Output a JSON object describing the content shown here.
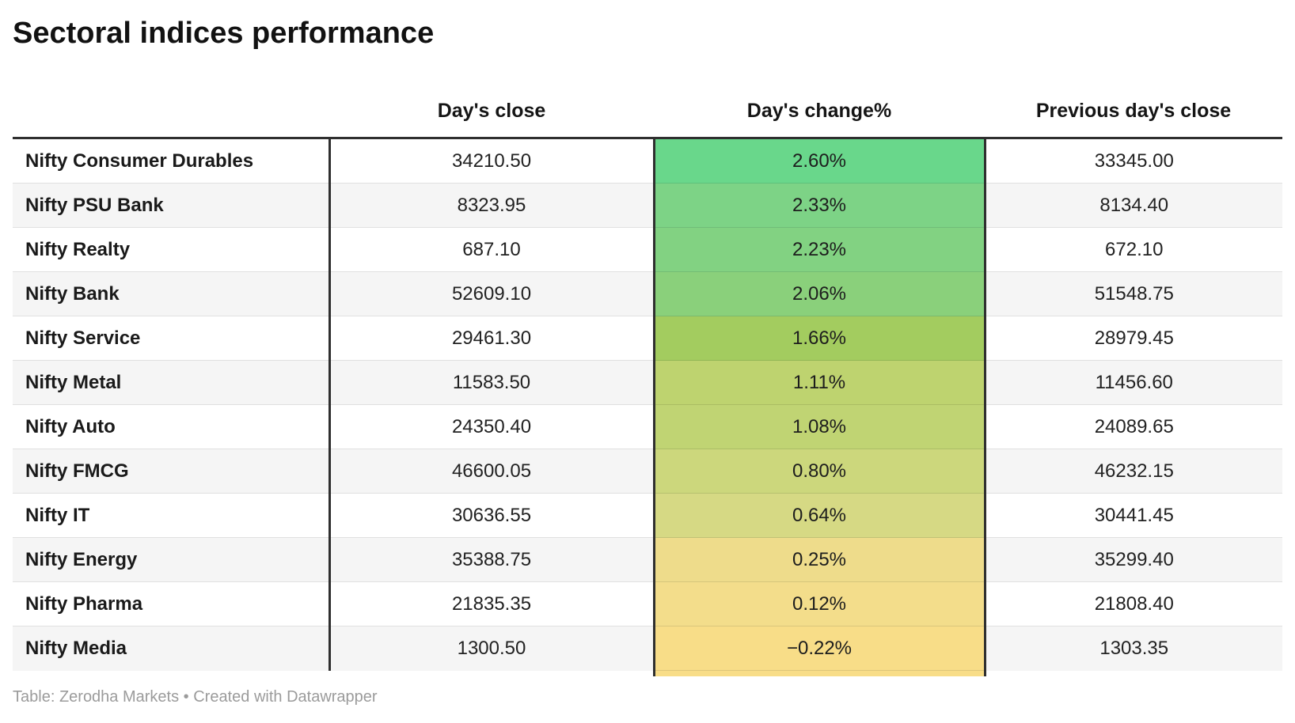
{
  "title": "Sectoral indices performance",
  "chart_data": {
    "type": "table",
    "title": "Sectoral indices performance",
    "columns": [
      "",
      "Day's close",
      "Day's change%",
      "Previous day's close"
    ],
    "heatmap_column": "Day's change%",
    "heatmap_scale": "green (high) to yellow (low)",
    "rows": [
      {
        "index": "Nifty Consumer Durables",
        "days_close": "34210.50",
        "days_change_pct": "2.60%",
        "prev_close": "33345.00",
        "change_color": "#69d78b"
      },
      {
        "index": "Nifty PSU Bank",
        "days_close": "8323.95",
        "days_change_pct": "2.33%",
        "prev_close": "8134.40",
        "change_color": "#7dd386"
      },
      {
        "index": "Nifty Realty",
        "days_close": "687.10",
        "days_change_pct": "2.23%",
        "prev_close": "672.10",
        "change_color": "#82d282"
      },
      {
        "index": "Nifty Bank",
        "days_close": "52609.10",
        "days_change_pct": "2.06%",
        "prev_close": "51548.75",
        "change_color": "#8ad07b"
      },
      {
        "index": "Nifty Service",
        "days_close": "29461.30",
        "days_change_pct": "1.66%",
        "prev_close": "28979.45",
        "change_color": "#a3cc5f"
      },
      {
        "index": "Nifty Metal",
        "days_close": "11583.50",
        "days_change_pct": "1.11%",
        "prev_close": "11456.60",
        "change_color": "#bed36f"
      },
      {
        "index": "Nifty Auto",
        "days_close": "24350.40",
        "days_change_pct": "1.08%",
        "prev_close": "24089.65",
        "change_color": "#c0d473"
      },
      {
        "index": "Nifty FMCG",
        "days_close": "46600.05",
        "days_change_pct": "0.80%",
        "prev_close": "46232.15",
        "change_color": "#ccd77c"
      },
      {
        "index": "Nifty IT",
        "days_close": "30636.55",
        "days_change_pct": "0.64%",
        "prev_close": "30441.45",
        "change_color": "#d6d984"
      },
      {
        "index": "Nifty Energy",
        "days_close": "35388.75",
        "days_change_pct": "0.25%",
        "prev_close": "35299.40",
        "change_color": "#eedc8b"
      },
      {
        "index": "Nifty Pharma",
        "days_close": "21835.35",
        "days_change_pct": "0.12%",
        "prev_close": "21808.40",
        "change_color": "#f3dd8b"
      },
      {
        "index": "Nifty Media",
        "days_close": "1300.50",
        "days_change_pct": "−0.22%",
        "prev_close": "1303.35",
        "change_color": "#f8dd88"
      }
    ]
  },
  "footer": {
    "prefix": "Table: ",
    "source": "Zerodha Markets",
    "separator": " • ",
    "created": "Created with ",
    "brand": "Datawrapper"
  },
  "colors": {
    "border_dark": "#2f2f2f",
    "row_alt_background": "#f5f5f5",
    "row_divider": "#e0e0e0",
    "footer_text": "#9b9b9b"
  }
}
